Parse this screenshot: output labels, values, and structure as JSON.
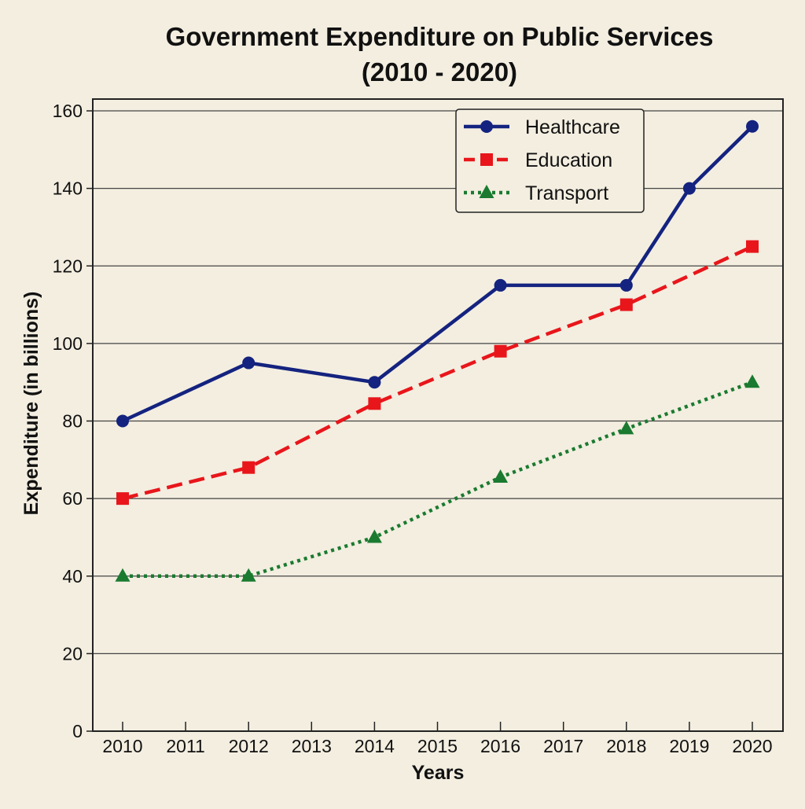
{
  "chart_data": {
    "type": "line",
    "title": "Government Expenditure on Public Services",
    "subtitle": "(2010 - 2020)",
    "xlabel": "Years",
    "ylabel": "Expenditure (in billions)",
    "x": [
      2010,
      2011,
      2012,
      2013,
      2014,
      2015,
      2016,
      2017,
      2018,
      2019,
      2020
    ],
    "x_tick_labels": [
      "2010",
      "2011",
      "2012",
      "2013",
      "2014",
      "2015",
      "2016",
      "2017",
      "2018",
      "2019",
      "2020"
    ],
    "xlim": [
      2010,
      2020
    ],
    "ylim": [
      0,
      160
    ],
    "y_ticks": [
      0,
      20,
      40,
      60,
      80,
      100,
      120,
      140,
      160
    ],
    "y_tick_labels": [
      "0",
      "20",
      "40",
      "60",
      "80",
      "100",
      "120",
      "140",
      "160"
    ],
    "grid": "horizontal",
    "legend_position": "top-right",
    "series": [
      {
        "name": "Healthcare",
        "color": "#14237f",
        "line_style": "solid",
        "marker": "circle",
        "points": [
          [
            2010,
            80
          ],
          [
            2012,
            95
          ],
          [
            2014,
            90
          ],
          [
            2016,
            115
          ],
          [
            2018,
            115
          ],
          [
            2019,
            140
          ],
          [
            2020,
            156
          ]
        ]
      },
      {
        "name": "Education",
        "color": "#e8161b",
        "line_style": "dashed",
        "marker": "square",
        "points": [
          [
            2010,
            60
          ],
          [
            2012,
            68
          ],
          [
            2014,
            84.5
          ],
          [
            2016,
            98
          ],
          [
            2018,
            110
          ],
          [
            2020,
            125
          ]
        ]
      },
      {
        "name": "Transport",
        "color": "#1a7a30",
        "line_style": "dotted",
        "marker": "triangle",
        "points": [
          [
            2010,
            40
          ],
          [
            2012,
            40
          ],
          [
            2014,
            50
          ],
          [
            2016,
            65.5
          ],
          [
            2018,
            78
          ],
          [
            2020,
            90
          ]
        ]
      }
    ]
  }
}
